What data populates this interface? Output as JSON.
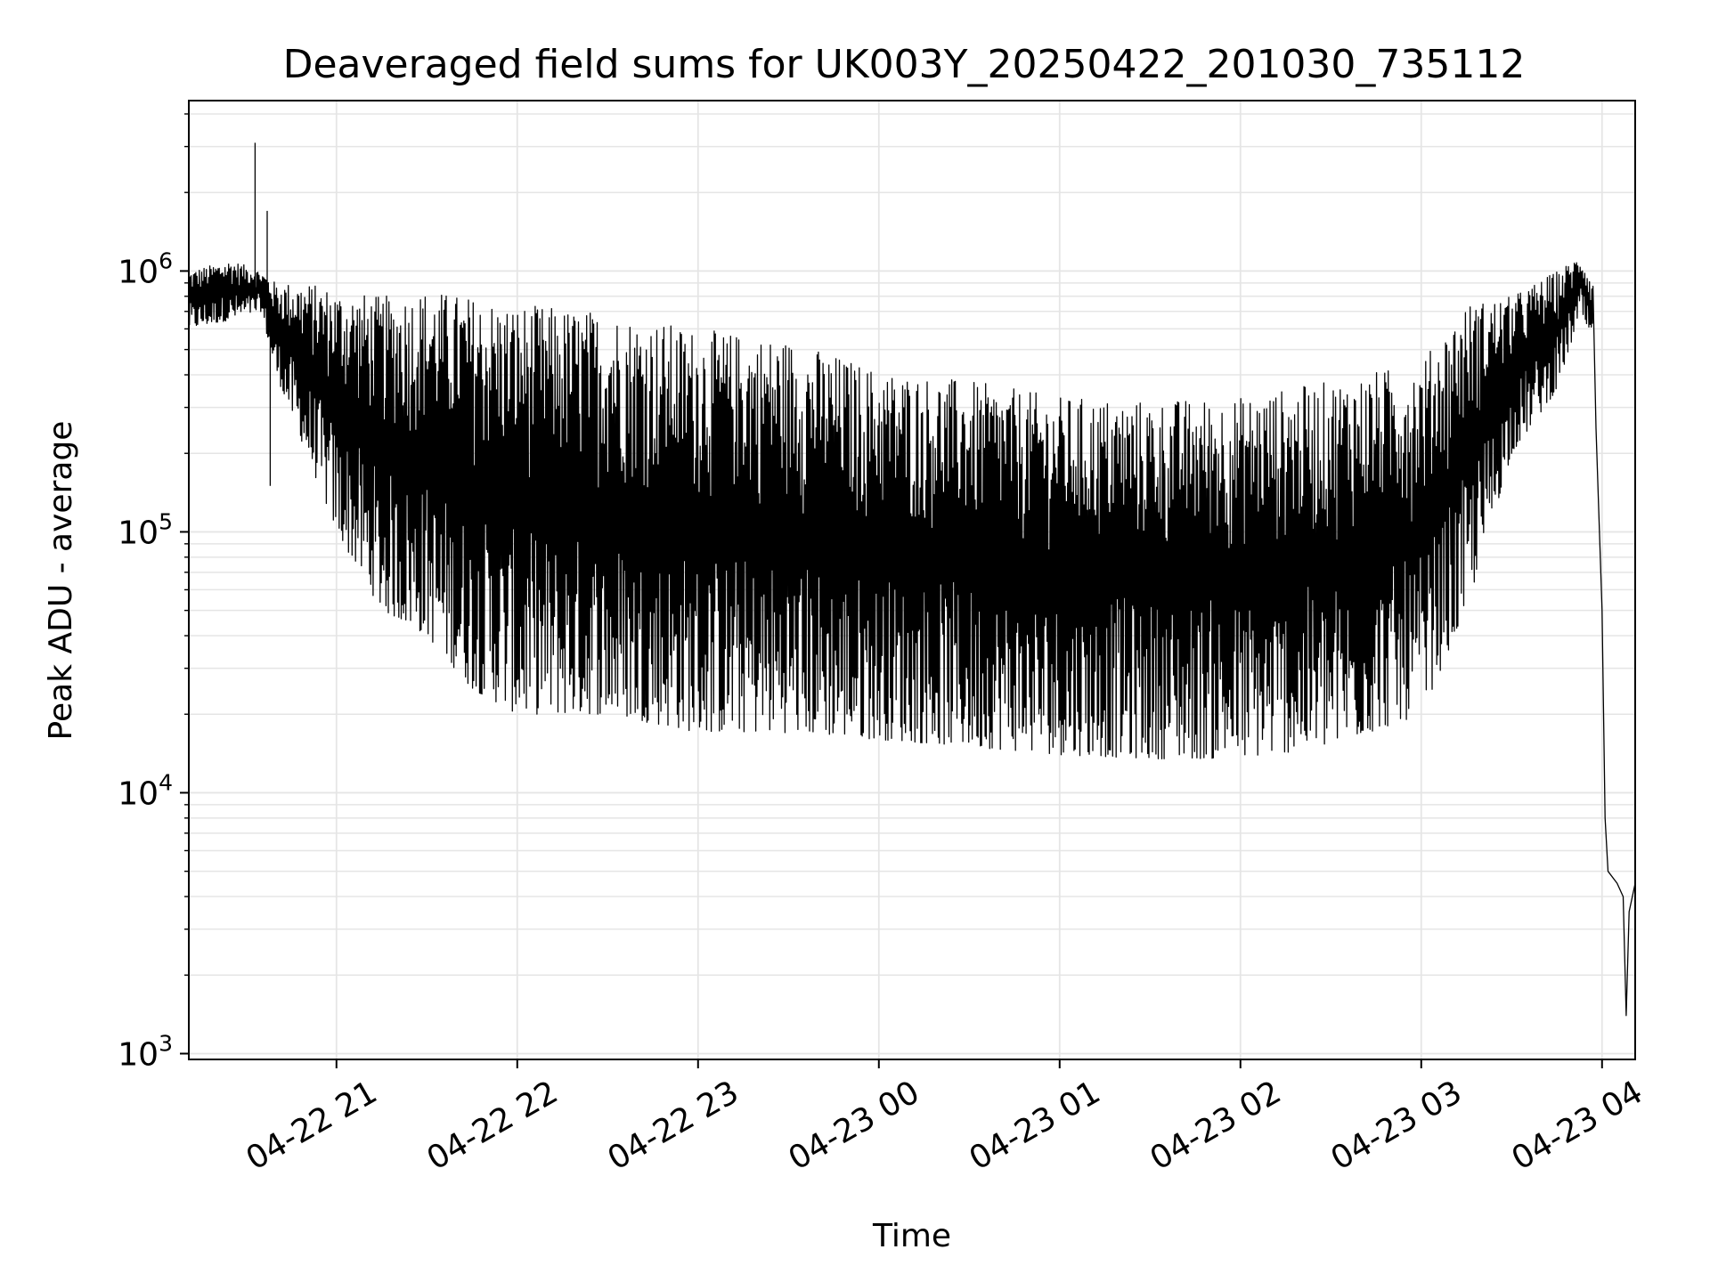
{
  "chart_data": {
    "type": "line",
    "title": "Deaveraged field sums for UK003Y_20250422_201030_735112",
    "xlabel": "Time",
    "ylabel": "Peak ADU - average",
    "yscale": "log",
    "ylim": [
      950,
      4500000
    ],
    "xlim": [
      "2025-04-22 20:11",
      "2025-04-23 04:11"
    ],
    "grid": true,
    "line_color": "#000000",
    "grid_color": "#e5e5e5",
    "x_ticks": [
      {
        "value": "2025-04-22 21:00",
        "label": "04-22 21"
      },
      {
        "value": "2025-04-22 22:00",
        "label": "04-22 22"
      },
      {
        "value": "2025-04-22 23:00",
        "label": "04-22 23"
      },
      {
        "value": "2025-04-23 00:00",
        "label": "04-23 00"
      },
      {
        "value": "2025-04-23 01:00",
        "label": "04-23 01"
      },
      {
        "value": "2025-04-23 02:00",
        "label": "04-23 02"
      },
      {
        "value": "2025-04-23 03:00",
        "label": "04-23 03"
      },
      {
        "value": "2025-04-23 04:00",
        "label": "04-23 04"
      }
    ],
    "y_ticks": [
      {
        "value": 1000,
        "base": "10",
        "exp": "3"
      },
      {
        "value": 10000,
        "base": "10",
        "exp": "4"
      },
      {
        "value": 100000,
        "base": "10",
        "exp": "5"
      },
      {
        "value": 1000000,
        "base": "10",
        "exp": "6"
      }
    ],
    "series": [
      {
        "envelope": [
          {
            "x": "2025-04-22 20:11",
            "upper": 1000000,
            "lower": 600000
          },
          {
            "x": "2025-04-22 20:25",
            "upper": 1100000,
            "lower": 650000
          },
          {
            "x": "2025-04-22 20:35",
            "upper": 1000000,
            "lower": 700000
          },
          {
            "x": "2025-04-22 20:40",
            "upper": 900000,
            "lower": 400000
          },
          {
            "x": "2025-04-22 20:50",
            "upper": 900000,
            "lower": 200000
          },
          {
            "x": "2025-04-22 21:00",
            "upper": 850000,
            "lower": 100000
          },
          {
            "x": "2025-04-22 21:15",
            "upper": 800000,
            "lower": 50000
          },
          {
            "x": "2025-04-22 21:30",
            "upper": 850000,
            "lower": 40000
          },
          {
            "x": "2025-04-22 21:45",
            "upper": 800000,
            "lower": 25000
          },
          {
            "x": "2025-04-22 22:00",
            "upper": 750000,
            "lower": 20000
          },
          {
            "x": "2025-04-22 22:30",
            "upper": 700000,
            "lower": 20000
          },
          {
            "x": "2025-04-22 23:00",
            "upper": 600000,
            "lower": 17000
          },
          {
            "x": "2025-04-22 23:30",
            "upper": 550000,
            "lower": 17000
          },
          {
            "x": "2025-04-23 00:00",
            "upper": 420000,
            "lower": 16000
          },
          {
            "x": "2025-04-23 00:30",
            "upper": 380000,
            "lower": 15000
          },
          {
            "x": "2025-04-23 01:00",
            "upper": 330000,
            "lower": 14000
          },
          {
            "x": "2025-04-23 01:30",
            "upper": 320000,
            "lower": 13500
          },
          {
            "x": "2025-04-23 02:00",
            "upper": 330000,
            "lower": 13500
          },
          {
            "x": "2025-04-23 02:30",
            "upper": 380000,
            "lower": 15000
          },
          {
            "x": "2025-04-23 03:00",
            "upper": 450000,
            "lower": 20000
          },
          {
            "x": "2025-04-23 03:15",
            "upper": 750000,
            "lower": 50000
          },
          {
            "x": "2025-04-23 03:30",
            "upper": 800000,
            "lower": 200000
          },
          {
            "x": "2025-04-23 03:45",
            "upper": 1000000,
            "lower": 350000
          },
          {
            "x": "2025-04-23 03:53",
            "upper": 1150000,
            "lower": 700000
          },
          {
            "x": "2025-04-23 03:57",
            "upper": 900000,
            "lower": 500000
          }
        ],
        "tail": [
          {
            "x": "2025-04-23 03:58",
            "y": 250000
          },
          {
            "x": "2025-04-23 04:00",
            "y": 50000
          },
          {
            "x": "2025-04-23 04:01",
            "y": 8000
          },
          {
            "x": "2025-04-23 04:02",
            "y": 5000
          },
          {
            "x": "2025-04-23 04:05",
            "y": 4500
          },
          {
            "x": "2025-04-23 04:07",
            "y": 4000
          },
          {
            "x": "2025-04-23 04:08",
            "y": 1400
          },
          {
            "x": "2025-04-23 04:09",
            "y": 3500
          },
          {
            "x": "2025-04-23 04:11",
            "y": 4500
          }
        ],
        "spikes": [
          {
            "x": "2025-04-22 20:33",
            "y": 3100000
          },
          {
            "x": "2025-04-22 20:37",
            "y": 1700000
          },
          {
            "x": "2025-04-22 20:38",
            "y": 150000
          }
        ]
      }
    ]
  }
}
